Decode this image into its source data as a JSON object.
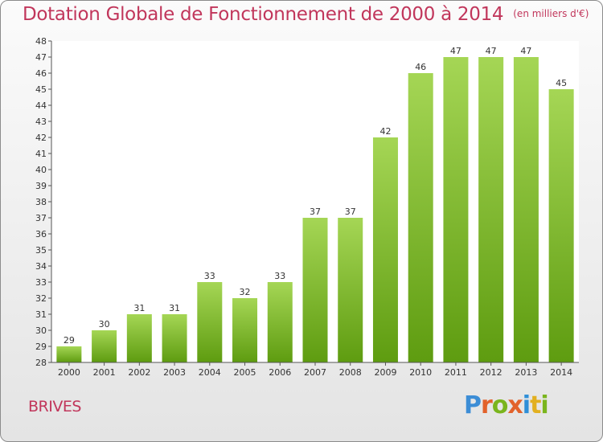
{
  "title": "Dotation Globale de Fonctionnement de 2000 à 2014",
  "subtitle": "(en milliers d'€)",
  "town": "BRIVES",
  "logo": {
    "text": "Proxiti",
    "letter_colors": [
      "#3c8dd6",
      "#e2622b",
      "#7ab51d",
      "#e2622b",
      "#2f8fd8",
      "#e2b020",
      "#7ab51d"
    ]
  },
  "colors": {
    "bar_light": "#a5d655",
    "bar_dark": "#5e9c10",
    "text": "#c1365b"
  },
  "chart_data": {
    "type": "bar",
    "categories": [
      "2000",
      "2001",
      "2002",
      "2003",
      "2004",
      "2005",
      "2006",
      "2007",
      "2008",
      "2009",
      "2010",
      "2011",
      "2012",
      "2013",
      "2014"
    ],
    "values": [
      29,
      30,
      31,
      31,
      33,
      32,
      33,
      37,
      37,
      42,
      46,
      47,
      47,
      47,
      45
    ],
    "title": "Dotation Globale de Fonctionnement de 2000 à 2014",
    "subtitle": "(en milliers d'€)",
    "xlabel": "",
    "ylabel": "",
    "ylim": [
      28,
      48
    ],
    "yticks": [
      28,
      29,
      30,
      31,
      32,
      33,
      34,
      35,
      36,
      37,
      38,
      39,
      40,
      41,
      42,
      43,
      44,
      45,
      46,
      47,
      48
    ],
    "grid": false,
    "data_labels": true
  }
}
